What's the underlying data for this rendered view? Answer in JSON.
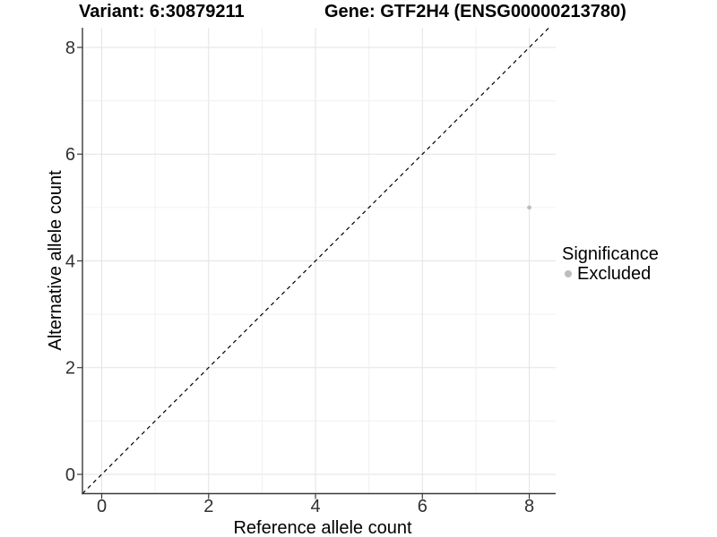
{
  "header": {
    "variant_title": "Variant: 6:30879211",
    "gene_title": "Gene: GTF2H4 (ENSG00000213780)"
  },
  "chart_data": {
    "type": "scatter",
    "title_left": "Variant: 6:30879211",
    "title_right": "Gene: GTF2H4 (ENSG00000213780)",
    "xlabel": "Reference allele count",
    "ylabel": "Alternative allele count",
    "xlim": [
      -0.4,
      8.45
    ],
    "ylim": [
      -0.4,
      8.4
    ],
    "x_ticks": [
      0,
      2,
      4,
      6,
      8
    ],
    "y_ticks": [
      0,
      2,
      4,
      6,
      8
    ],
    "grid_positions": [
      0,
      1,
      2,
      3,
      4,
      5,
      6,
      7,
      8
    ],
    "grid_on": true,
    "series": [
      {
        "name": "Excluded",
        "color": "#bdbdbd",
        "points": [
          [
            8,
            5
          ]
        ]
      }
    ],
    "reference_line": {
      "type": "identity",
      "style": "dashed",
      "color": "#000000"
    },
    "legend_position": "right"
  },
  "legend": {
    "title": "Significance",
    "items": [
      {
        "label": "Excluded",
        "color": "#bdbdbd",
        "marker": "circle-icon"
      }
    ]
  },
  "colors": {
    "grid_major": "#e3e3e3",
    "grid_minor": "#f0f0f0",
    "axis_line": "#3a3a3a",
    "tick_text": "#303030",
    "axis_title_text": "#000000"
  }
}
